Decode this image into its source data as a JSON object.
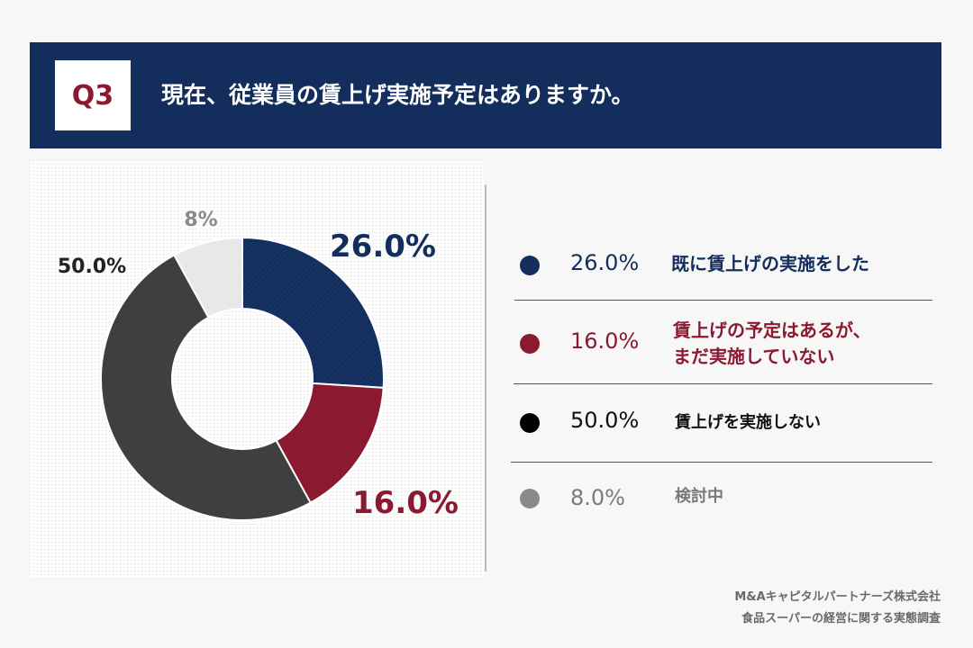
{
  "header": {
    "q_label": "Q3",
    "question": "現在、従業員の賃上げ実施予定はありますか。"
  },
  "chart_data": {
    "type": "pie",
    "style": "donut",
    "slices": [
      {
        "label": "既に賃上げの実施をした",
        "value": 26.0,
        "chart_label": "26.0%",
        "legend_pct": "26.0%",
        "color": "#132e5c"
      },
      {
        "label": "賃上げの予定はあるが、まだ実施していない",
        "value": 16.0,
        "chart_label": "16.0%",
        "legend_pct": "16.0%",
        "color": "#8b1a30"
      },
      {
        "label": "賃上げを実施しない",
        "value": 50.0,
        "chart_label": "50.0%",
        "legend_pct": "50.0%",
        "color": "#3f3f3f"
      },
      {
        "label": "検討中",
        "value": 8.0,
        "chart_label": "8%",
        "legend_pct": "8.0%",
        "color": "#e8e8e8"
      }
    ]
  },
  "legend": {
    "items": [
      {
        "pct": "26.0%",
        "lines": [
          "既に賃上げの実施をした"
        ],
        "dot_color": "#132e5c",
        "text_color": "#132e5c"
      },
      {
        "pct": "16.0%",
        "lines": [
          "賃上げの予定はあるが、",
          "まだ実施していない"
        ],
        "dot_color": "#8b1a30",
        "text_color": "#8b1a30"
      },
      {
        "pct": "50.0%",
        "lines": [
          "賃上げを実施しない"
        ],
        "dot_color": "#000000",
        "text_color": "#111111"
      },
      {
        "pct": "8.0%",
        "lines": [
          "検討中"
        ],
        "dot_color": "#8a8a8a",
        "text_color": "#7a7a7a"
      }
    ]
  },
  "source": {
    "line1": "M&Aキャピタルパートナーズ株式会社",
    "line2": "食品スーパーの経営に関する実態調査"
  }
}
